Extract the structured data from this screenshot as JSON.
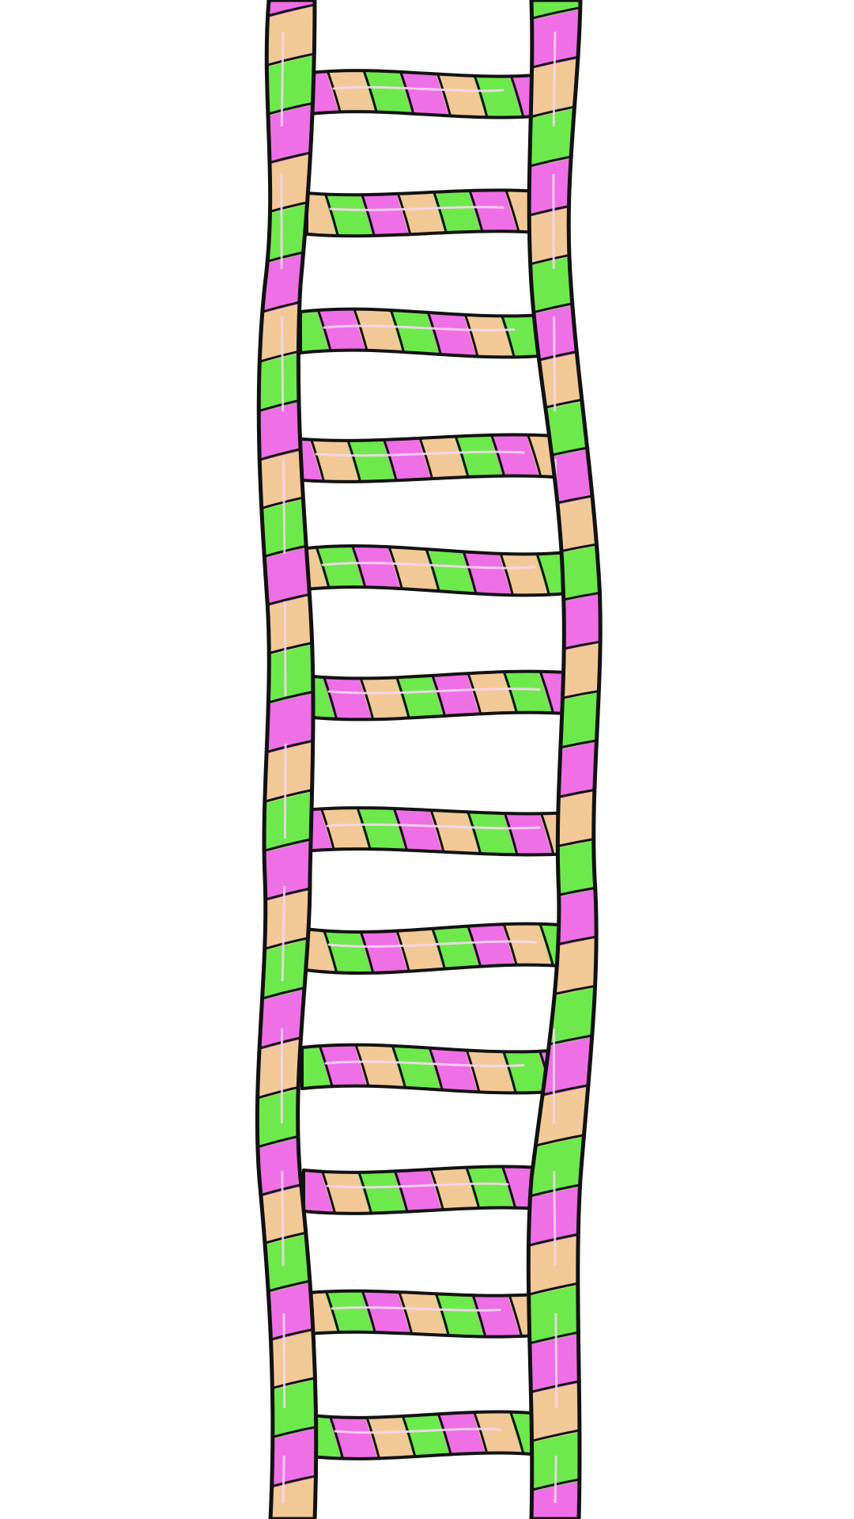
{
  "illustration": {
    "subject": "striped ladder",
    "rails": [
      {
        "name": "left-rail"
      },
      {
        "name": "right-rail"
      }
    ],
    "rung_count": 12,
    "stripe_pattern": [
      "green",
      "pink",
      "peach"
    ],
    "colors": {
      "green": "#6ee94c",
      "pink": "#ef6fe6",
      "peach": "#f2c996",
      "outline": "#111111",
      "highlight": "#f7d6f2",
      "background": "#ffffff"
    }
  }
}
